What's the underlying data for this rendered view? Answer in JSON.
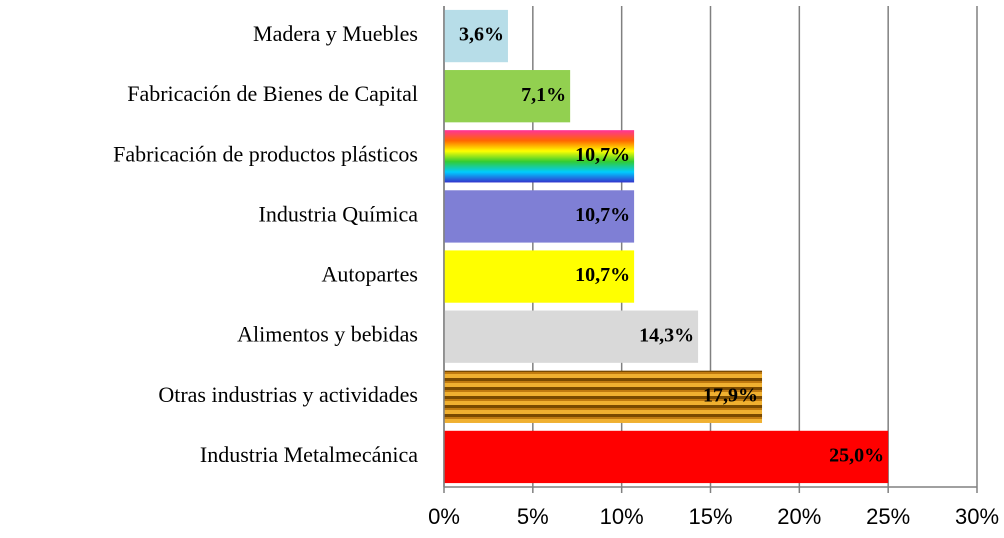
{
  "chart_data": {
    "type": "bar",
    "orientation": "horizontal",
    "categories": [
      "Madera y Muebles",
      "Fabricación de Bienes de Capital",
      "Fabricación de productos plásticos",
      "Industria Química",
      "Autopartes",
      "Alimentos y bebidas",
      "Otras industrias y actividades",
      "Industria Metalmecánica"
    ],
    "values": [
      3.6,
      7.1,
      10.7,
      10.7,
      10.7,
      14.3,
      17.9,
      25.0
    ],
    "value_labels": [
      "3,6%",
      "7,1%",
      "10,7%",
      "10,7%",
      "10,7%",
      "14,3%",
      "17,9%",
      "25,0%"
    ],
    "colors": [
      "#b7dde8",
      "#92d050",
      "url(#rainbow)",
      "#7f7fd5",
      "#ffff00",
      "#d9d9d9",
      "url(#stripes)",
      "#ff0000"
    ],
    "xlim": [
      0,
      30
    ],
    "xticks": [
      {
        "value": 0,
        "label": "0%"
      },
      {
        "value": 5,
        "label": "5%"
      },
      {
        "value": 10,
        "label": "10%"
      },
      {
        "value": 15,
        "label": "15%"
      },
      {
        "value": 20,
        "label": "20%"
      },
      {
        "value": 25,
        "label": "25%"
      },
      {
        "value": 30,
        "label": "30%"
      }
    ],
    "grid": true
  }
}
